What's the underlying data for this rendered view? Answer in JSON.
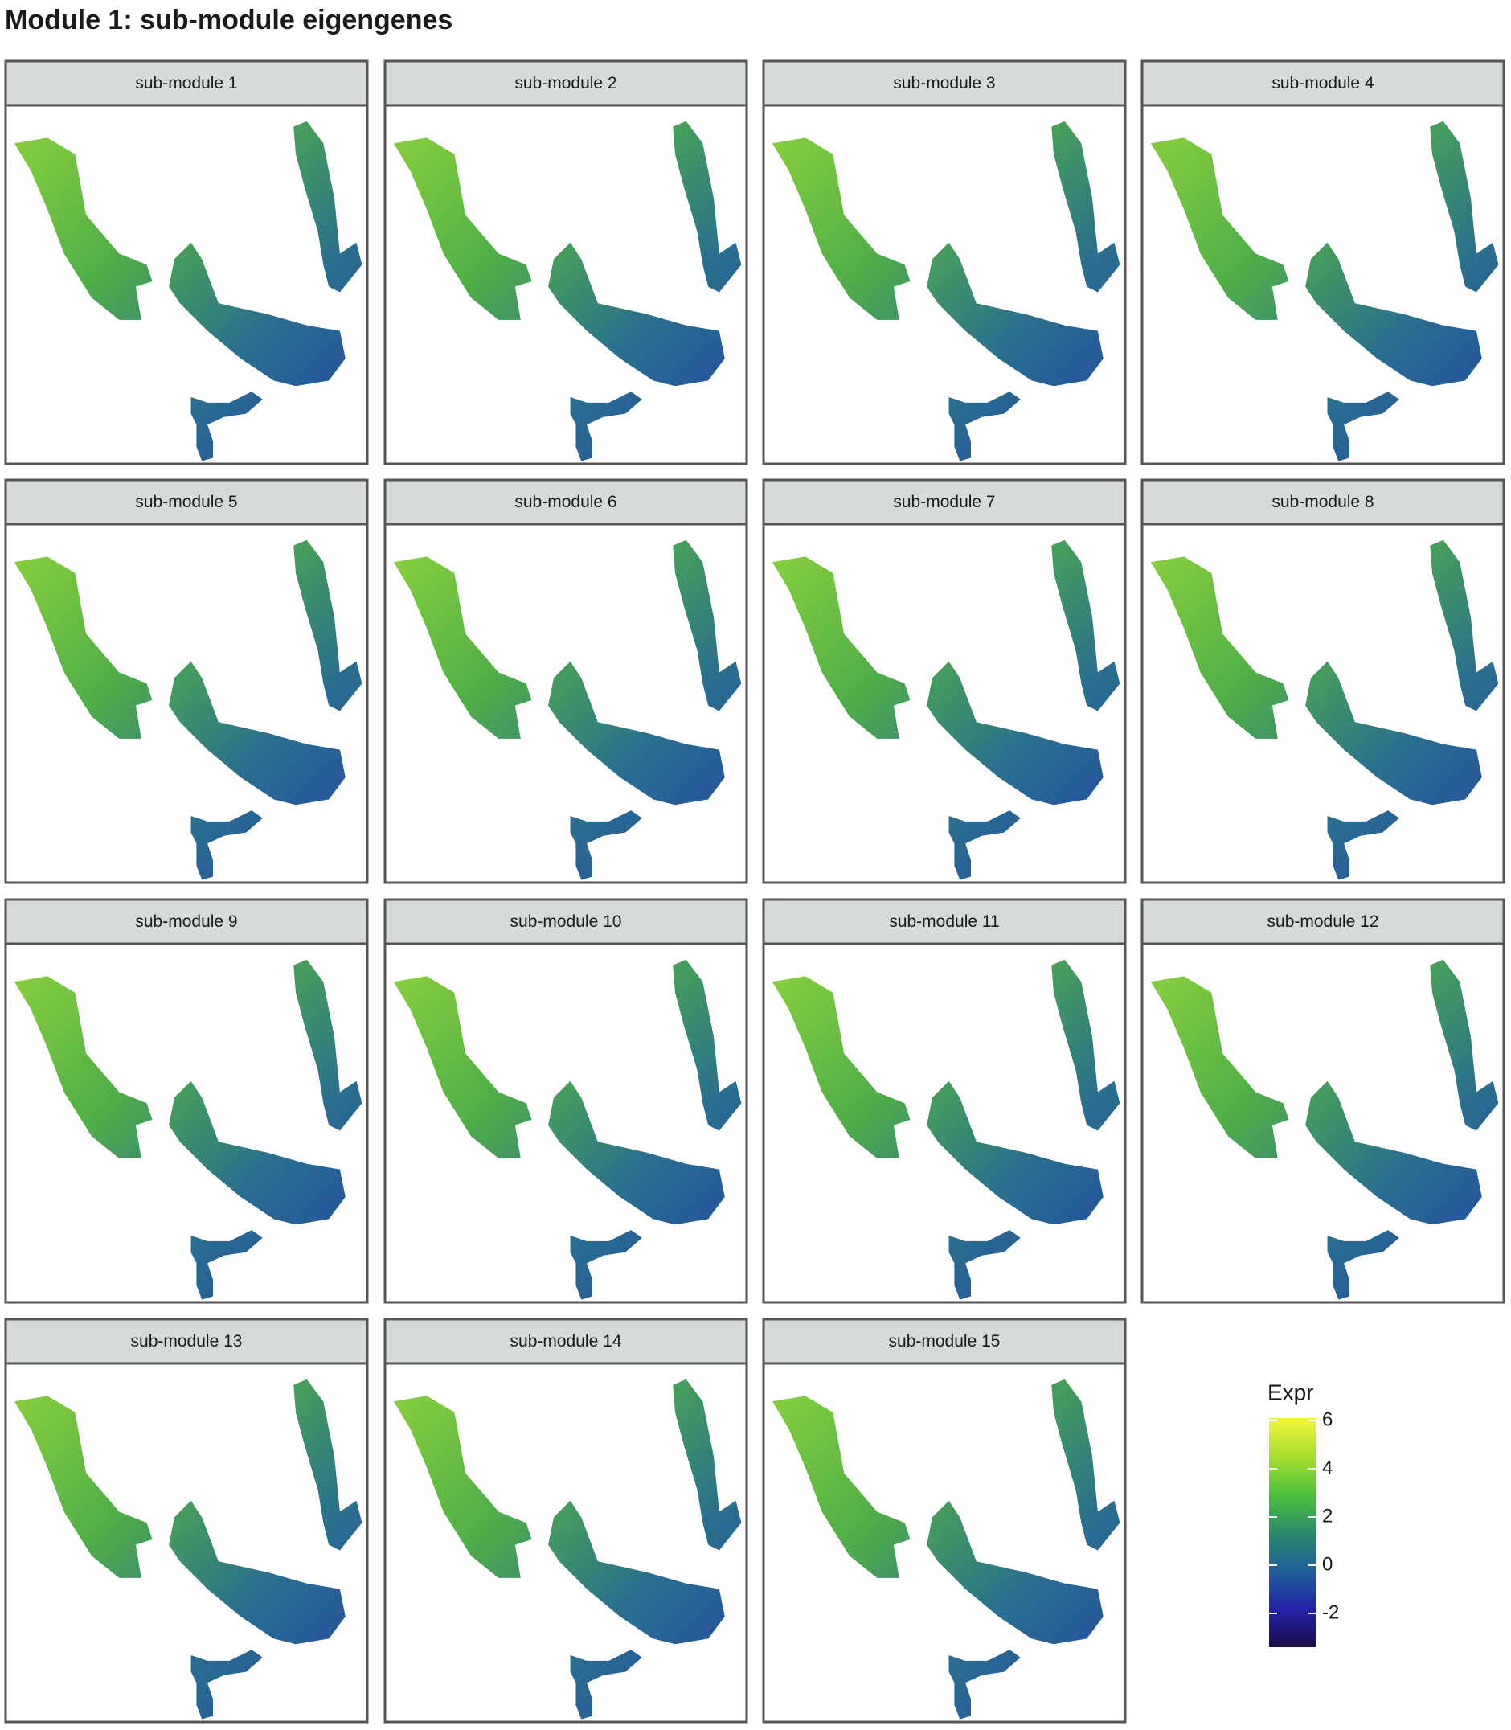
{
  "chart_data": {
    "type": "spatial-facets",
    "title": "Module 1: sub-module eigengenes",
    "panels": [
      "sub-module 1",
      "sub-module 2",
      "sub-module 3",
      "sub-module 4",
      "sub-module 5",
      "sub-module 6",
      "sub-module 7",
      "sub-module 8",
      "sub-module 9",
      "sub-module 10",
      "sub-module 11",
      "sub-module 12",
      "sub-module 13",
      "sub-module 14",
      "sub-module 15"
    ],
    "colorbar": {
      "title": "Expr",
      "lim": [
        -3.4,
        6.1
      ],
      "ticks": [
        -2,
        0,
        2,
        4,
        6
      ],
      "colors": [
        "#1b0c4a",
        "#2323a8",
        "#1f5f99",
        "#2a8a6a",
        "#4cc13a",
        "#a8e030",
        "#f3f538"
      ]
    }
  }
}
